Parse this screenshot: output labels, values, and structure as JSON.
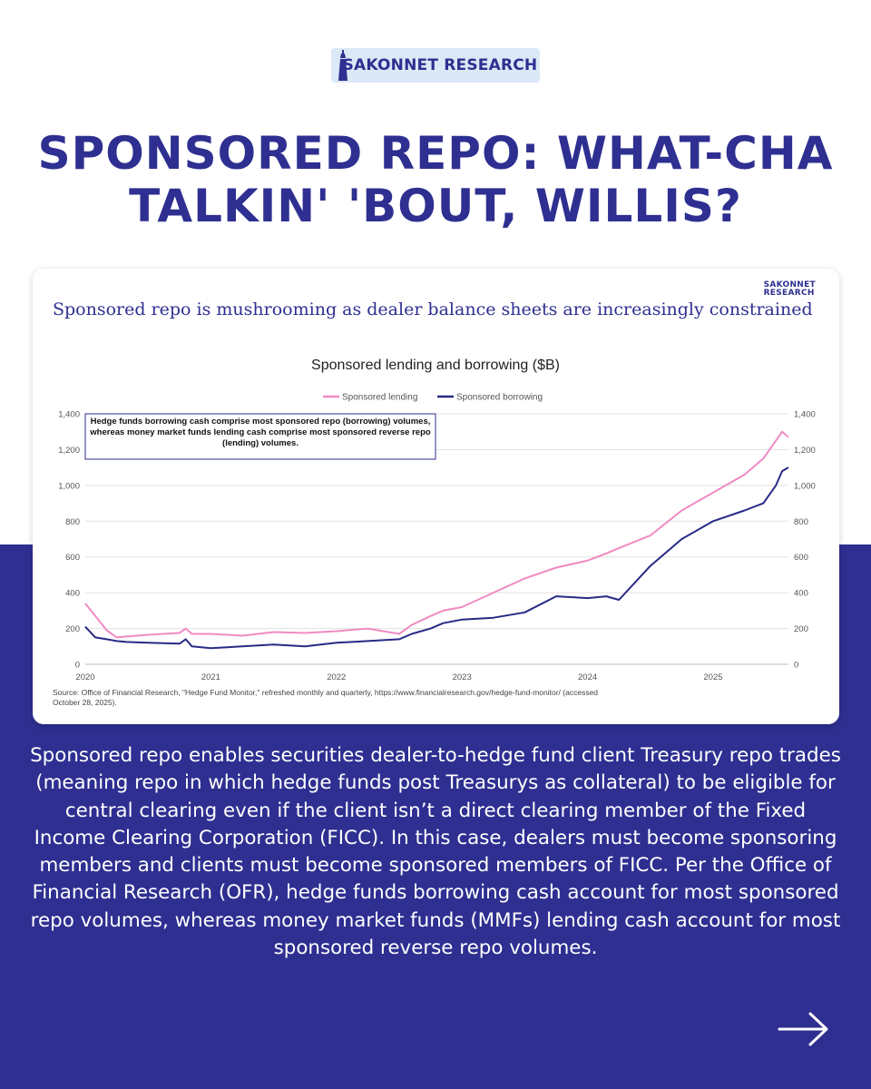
{
  "brand": {
    "name": "SAKONNET RESEARCH",
    "icon": "lighthouse-icon"
  },
  "headline": "SPONSORED REPO: WHAT-CHA TALKIN' 'BOUT, WILLIS?",
  "card": {
    "logo_line1": "SAKONNET",
    "logo_line2": "RESEARCH",
    "subtitle": "Sponsored repo is mushrooming as dealer balance sheets are increasingly constrained",
    "source": "Source: Office of Financial Research, \"Hedge Fund Monitor,\" refreshed monthly and quarterly, https://www.financialresearch.gov/hedge-fund-monitor/ (accessed October 28, 2025)."
  },
  "chart_data": {
    "type": "line",
    "title": "Sponsored lending and borrowing ($B)",
    "xlabel": "",
    "ylabel": "",
    "xlim": [
      2020.0,
      2025.6
    ],
    "ylim": [
      0,
      1400
    ],
    "y_ticks": [
      0,
      200,
      400,
      600,
      800,
      1000,
      1200,
      1400
    ],
    "y_tick_labels": [
      "0",
      "200",
      "400",
      "600",
      "800",
      "1,000",
      "1,200",
      "1,400"
    ],
    "x_ticks": [
      2020,
      2021,
      2022,
      2023,
      2024,
      2025
    ],
    "x_tick_labels": [
      "2020",
      "2021",
      "2022",
      "2023",
      "2024",
      "2025"
    ],
    "grid": "horizontal",
    "legend": "top-center",
    "annotation": "Hedge funds borrowing cash comprise most sponsored repo (borrowing) volumes, whereas money market funds lending cash comprise most sponsored reverse repo (lending) volumes.",
    "x": [
      2020.0,
      2020.08,
      2020.17,
      2020.25,
      2020.33,
      2020.5,
      2020.75,
      2020.8,
      2020.85,
      2021.0,
      2021.25,
      2021.5,
      2021.75,
      2022.0,
      2022.25,
      2022.5,
      2022.6,
      2022.75,
      2022.85,
      2023.0,
      2023.25,
      2023.5,
      2023.75,
      2024.0,
      2024.15,
      2024.25,
      2024.5,
      2024.75,
      2025.0,
      2025.25,
      2025.4,
      2025.5,
      2025.55,
      2025.6
    ],
    "series": [
      {
        "name": "Sponsored lending",
        "color": "#f08ac2",
        "values": [
          340,
          270,
          190,
          150,
          155,
          165,
          175,
          200,
          170,
          170,
          160,
          180,
          175,
          185,
          200,
          170,
          220,
          270,
          300,
          320,
          400,
          480,
          540,
          580,
          620,
          650,
          720,
          860,
          960,
          1060,
          1150,
          1250,
          1300,
          1270
        ]
      },
      {
        "name": "Sponsored borrowing",
        "color": "#272a86",
        "values": [
          210,
          150,
          140,
          130,
          125,
          120,
          115,
          140,
          100,
          90,
          100,
          110,
          100,
          120,
          130,
          140,
          170,
          200,
          230,
          250,
          260,
          290,
          380,
          370,
          380,
          360,
          550,
          700,
          800,
          860,
          900,
          1000,
          1080,
          1100
        ]
      }
    ]
  },
  "body": "Sponsored repo enables securities dealer-to-hedge fund client Treasury repo trades (meaning repo in which hedge funds post Treasurys as collateral) to be eligible for central clearing even if the client isn’t a direct clearing member of the Fixed Income Clearing Corporation (FICC). In this case, dealers must become sponsoring members and clients must become sponsored members of FICC. Per the Office of Financial Research (OFR), hedge funds borrowing cash account for most sponsored repo volumes, whereas money market funds (MMFs) lending cash account for most sponsored reverse repo volumes.",
  "nav": {
    "next_icon": "arrow-right-icon"
  }
}
